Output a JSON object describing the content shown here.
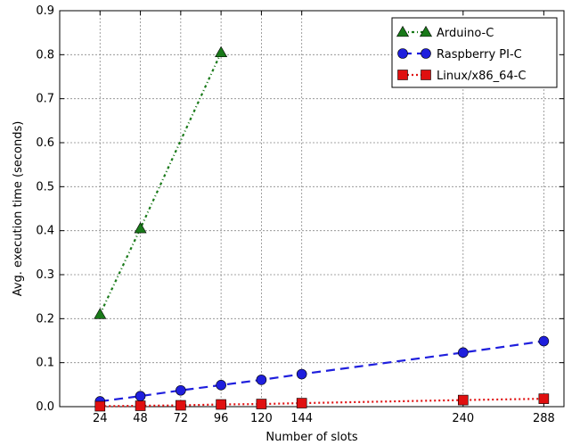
{
  "chart_data": {
    "type": "line",
    "xlabel": "Number of slots",
    "ylabel": "Avg. execution time (seconds)",
    "xlim": [
      0,
      300
    ],
    "ylim": [
      0,
      0.9
    ],
    "xticks": [
      24,
      48,
      72,
      96,
      120,
      144,
      240,
      288
    ],
    "yticks": [
      0.0,
      0.1,
      0.2,
      0.3,
      0.4,
      0.5,
      0.6,
      0.7,
      0.8,
      0.9
    ],
    "grid": true,
    "legend_position": "top-right",
    "series": [
      {
        "name": "Arduino-C",
        "color": "#1a7a1a",
        "marker": "triangle",
        "line_style": "dash-dot",
        "x": [
          24,
          48,
          96
        ],
        "y": [
          0.21,
          0.405,
          0.805
        ]
      },
      {
        "name": "Raspberry PI-C",
        "color": "#1f1fdd",
        "marker": "circle",
        "line_style": "dashed",
        "x": [
          24,
          48,
          72,
          96,
          120,
          144,
          240,
          288
        ],
        "y": [
          0.012,
          0.024,
          0.037,
          0.049,
          0.061,
          0.074,
          0.123,
          0.149
        ]
      },
      {
        "name": "Linux/x86_64-C",
        "color": "#e01010",
        "marker": "square",
        "line_style": "dotted",
        "x": [
          24,
          48,
          72,
          96,
          120,
          144,
          240,
          288
        ],
        "y": [
          0.001,
          0.002,
          0.003,
          0.005,
          0.006,
          0.008,
          0.015,
          0.018
        ]
      }
    ]
  }
}
